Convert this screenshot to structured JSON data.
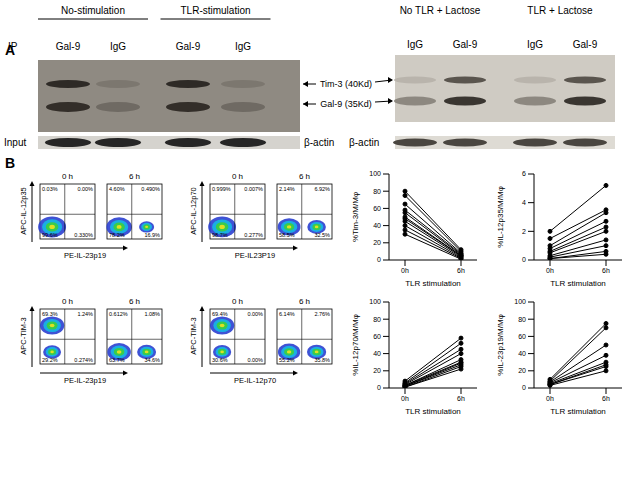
{
  "panel_a": {
    "label": "A",
    "left_blot": {
      "ip_label": "IP",
      "groups": [
        {
          "title": "No-stimulation",
          "lanes": [
            "Gal-9",
            "IgG"
          ]
        },
        {
          "title": "TLR-stimulation",
          "lanes": [
            "Gal-9",
            "IgG"
          ]
        }
      ],
      "input_label": "Input",
      "loading_control": "β-actin"
    },
    "right_blot": {
      "groups": [
        {
          "title": "No TLR  + Lactose",
          "lanes": [
            "IgG",
            "Gal-9"
          ]
        },
        {
          "title": "TLR + Lactose",
          "lanes": [
            "IgG",
            "Gal-9"
          ]
        }
      ],
      "loading_control": "β-actin"
    },
    "bands": [
      "Tim-3 (40Kd)",
      "Gal-9 (35Kd)"
    ]
  },
  "panel_b": {
    "label": "B",
    "flow_plots": [
      {
        "y_label": "APC-IL-12p35",
        "x_label": "PE-IL-23p19",
        "plots": [
          {
            "time": "0 h",
            "quadrants": {
              "ul": "0.03%",
              "ur": "0.00%",
              "ll": "99.6%",
              "lr": "0.330%"
            }
          },
          {
            "time": "6 h",
            "quadrants": {
              "ul": "4.60%",
              "ur": "0.490%",
              "ll": "78.2%",
              "lr": "16.9%"
            }
          }
        ]
      },
      {
        "y_label": "APC-IL-12p70",
        "x_label": "PE-IL23P19",
        "plots": [
          {
            "time": "0 h",
            "quadrants": {
              "ul": "0.999%",
              "ur": "0.007%",
              "ll": "98.7%",
              "lr": "0.277%"
            }
          },
          {
            "time": "6 h",
            "quadrants": {
              "ul": "2.14%",
              "ur": "6.92%",
              "ll": "58.5%",
              "lr": "32.5%"
            }
          }
        ]
      },
      {
        "y_label": "APC-TIM-3",
        "x_label": "PE-IL-23p19",
        "plots": [
          {
            "time": "0 h",
            "quadrants": {
              "ul": "69.3%",
              "ur": "1.24%",
              "ll": "29.2%",
              "lr": "0.274%"
            }
          },
          {
            "time": "6 h",
            "quadrants": {
              "ul": "0.612%",
              "ur": "1.08%",
              "ll": "63.7%",
              "lr": "34.6%"
            }
          }
        ]
      },
      {
        "y_label": "APC-TIM-3",
        "x_label": "PE-IL-12p70",
        "plots": [
          {
            "time": "0 h",
            "quadrants": {
              "ul": "69.4%",
              "ur": "0.00%",
              "ll": "30.6%",
              "lr": "0.00%"
            }
          },
          {
            "time": "6 h",
            "quadrants": {
              "ul": "6.14%",
              "ur": "2.76%",
              "ll": "55.2%",
              "lr": "35.8%"
            }
          }
        ]
      }
    ]
  },
  "chart_data": [
    {
      "type": "line",
      "y_label": "%Tim-3/M/Mφ",
      "x_label": "TLR stimulation",
      "categories": [
        "0h",
        "6h"
      ],
      "ylim": [
        0,
        100
      ],
      "yticks": [
        0,
        20,
        40,
        60,
        80,
        100
      ],
      "color": "#000000",
      "marker": "circle",
      "series": [
        {
          "values": [
            80,
            12
          ]
        },
        {
          "values": [
            75,
            10
          ]
        },
        {
          "values": [
            65,
            8
          ]
        },
        {
          "values": [
            58,
            7
          ]
        },
        {
          "values": [
            55,
            6
          ]
        },
        {
          "values": [
            50,
            5
          ]
        },
        {
          "values": [
            48,
            5
          ]
        },
        {
          "values": [
            45,
            4
          ]
        },
        {
          "values": [
            40,
            3
          ]
        },
        {
          "values": [
            35,
            2
          ]
        },
        {
          "values": [
            30,
            1
          ]
        }
      ]
    },
    {
      "type": "line",
      "y_label": "%IL-12p35/M/Mφ",
      "x_label": "TLR stimulation",
      "categories": [
        "0h",
        "6h"
      ],
      "ylim": [
        0,
        6
      ],
      "yticks": [
        0,
        2,
        4,
        6
      ],
      "color": "#000000",
      "marker": "circle",
      "series": [
        {
          "values": [
            2.0,
            5.2
          ]
        },
        {
          "values": [
            1.5,
            3.5
          ]
        },
        {
          "values": [
            1.0,
            3.3
          ]
        },
        {
          "values": [
            0.8,
            2.7
          ]
        },
        {
          "values": [
            0.6,
            2.3
          ]
        },
        {
          "values": [
            0.5,
            2.0
          ]
        },
        {
          "values": [
            0.3,
            1.4
          ]
        },
        {
          "values": [
            0.2,
            1.0
          ]
        },
        {
          "values": [
            0.1,
            0.6
          ]
        },
        {
          "values": [
            0.1,
            0.4
          ]
        }
      ]
    },
    {
      "type": "line",
      "y_label": "%IL-12p70/M/Mφ",
      "x_label": "TLR stimulation",
      "categories": [
        "0h",
        "6h"
      ],
      "ylim": [
        0,
        100
      ],
      "yticks": [
        0,
        20,
        40,
        60,
        80,
        100
      ],
      "color": "#000000",
      "marker": "circle",
      "series": [
        {
          "values": [
            8,
            58
          ]
        },
        {
          "values": [
            6,
            52
          ]
        },
        {
          "values": [
            5,
            45
          ]
        },
        {
          "values": [
            4,
            40
          ]
        },
        {
          "values": [
            3,
            33
          ]
        },
        {
          "values": [
            3,
            30
          ]
        },
        {
          "values": [
            2,
            29
          ]
        },
        {
          "values": [
            2,
            27
          ]
        },
        {
          "values": [
            1,
            25
          ]
        },
        {
          "values": [
            1,
            22
          ]
        }
      ]
    },
    {
      "type": "line",
      "y_label": "%IL-23p19/M/Mφ",
      "x_label": "TLR stimulation",
      "categories": [
        "0h",
        "6h"
      ],
      "ylim": [
        0,
        100
      ],
      "yticks": [
        0,
        20,
        40,
        60,
        80,
        100
      ],
      "color": "#000000",
      "marker": "circle",
      "series": [
        {
          "values": [
            10,
            75
          ]
        },
        {
          "values": [
            8,
            70
          ]
        },
        {
          "values": [
            7,
            50
          ]
        },
        {
          "values": [
            6,
            38
          ]
        },
        {
          "values": [
            5,
            30
          ]
        },
        {
          "values": [
            4,
            27
          ]
        },
        {
          "values": [
            4,
            25
          ]
        },
        {
          "values": [
            3,
            20
          ]
        }
      ]
    }
  ]
}
